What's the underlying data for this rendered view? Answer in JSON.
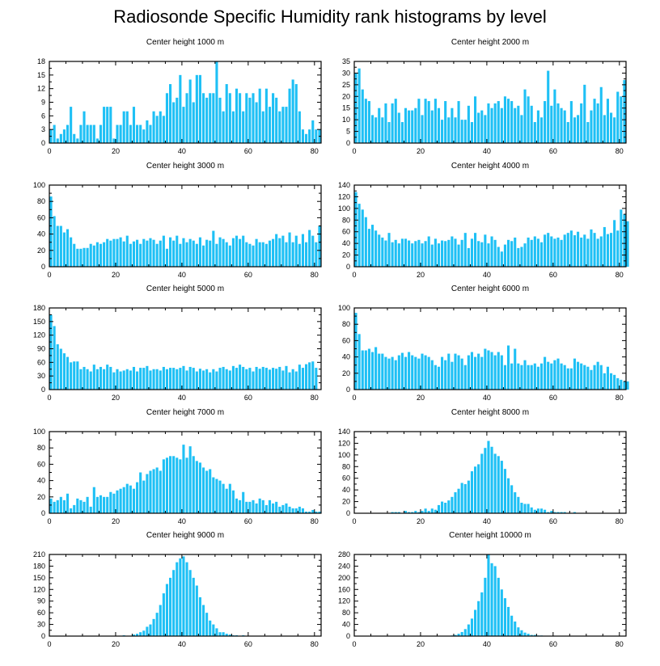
{
  "title": "Radiosonde Specific Humidity rank histograms by level",
  "colors": {
    "bar": "#1ec0f5",
    "axis": "#000000",
    "background": "#ffffff"
  },
  "chart_data": [
    {
      "type": "bar",
      "title": "Center height 1000 m",
      "xlim": [
        0,
        82
      ],
      "ylim": [
        0,
        18
      ],
      "xticks": [
        0,
        20,
        40,
        60,
        80
      ],
      "yticks": [
        0,
        3,
        6,
        9,
        12,
        15,
        18
      ],
      "values": [
        3,
        4,
        1,
        2,
        3,
        4,
        8,
        2,
        1,
        4,
        7,
        4,
        4,
        4,
        1,
        4,
        8,
        8,
        8,
        1,
        4,
        4,
        7,
        7,
        4,
        8,
        4,
        4,
        3,
        5,
        4,
        7,
        6,
        7,
        6,
        11,
        13,
        9,
        10,
        15,
        8,
        11,
        14,
        9,
        15,
        15,
        11,
        10,
        11,
        11,
        18,
        10,
        7,
        13,
        11,
        7,
        12,
        11,
        7,
        11,
        10,
        11,
        9,
        12,
        7,
        12,
        8,
        11,
        10,
        7,
        8,
        8,
        12,
        14,
        13,
        7,
        3,
        2,
        3,
        5,
        3,
        3
      ]
    },
    {
      "type": "bar",
      "title": "Center height 2000 m",
      "xlim": [
        0,
        82
      ],
      "ylim": [
        0,
        35
      ],
      "xticks": [
        0,
        20,
        40,
        60,
        80
      ],
      "yticks": [
        0,
        5,
        10,
        15,
        20,
        25,
        30,
        35
      ],
      "values": [
        30,
        32,
        23,
        19,
        18,
        12,
        11,
        15,
        11,
        17,
        9,
        17,
        19,
        13,
        9,
        15,
        14,
        14,
        15,
        19,
        12,
        19,
        18,
        14,
        19,
        15,
        10,
        18,
        11,
        15,
        11,
        18,
        10,
        10,
        16,
        9,
        20,
        13,
        14,
        12,
        17,
        15,
        17,
        18,
        15,
        20,
        19,
        18,
        15,
        16,
        12,
        23,
        20,
        16,
        9,
        14,
        11,
        18,
        31,
        16,
        23,
        17,
        15,
        14,
        9,
        18,
        11,
        12,
        17,
        25,
        9,
        14,
        19,
        17,
        24,
        12,
        19,
        13,
        11,
        22,
        20,
        27
      ]
    },
    {
      "type": "bar",
      "title": "Center height 3000 m",
      "xlim": [
        0,
        82
      ],
      "ylim": [
        0,
        100
      ],
      "xticks": [
        0,
        20,
        40,
        60,
        80
      ],
      "yticks": [
        0,
        20,
        40,
        60,
        80,
        100
      ],
      "values": [
        86,
        62,
        50,
        50,
        42,
        46,
        36,
        28,
        22,
        22,
        23,
        23,
        28,
        26,
        30,
        28,
        30,
        34,
        32,
        34,
        34,
        36,
        31,
        38,
        28,
        31,
        33,
        28,
        34,
        32,
        35,
        33,
        28,
        32,
        38,
        22,
        36,
        32,
        38,
        28,
        35,
        30,
        34,
        32,
        28,
        36,
        26,
        33,
        32,
        44,
        28,
        36,
        34,
        30,
        26,
        35,
        38,
        34,
        38,
        30,
        28,
        26,
        34,
        30,
        30,
        28,
        32,
        34,
        40,
        35,
        38,
        30,
        42,
        30,
        38,
        28,
        40,
        30,
        45,
        38,
        30,
        50
      ]
    },
    {
      "type": "bar",
      "title": "Center height 4000 m",
      "xlim": [
        0,
        82
      ],
      "ylim": [
        0,
        140
      ],
      "xticks": [
        0,
        20,
        40,
        60,
        80
      ],
      "yticks": [
        0,
        20,
        40,
        60,
        80,
        100,
        120,
        140
      ],
      "values": [
        128,
        108,
        98,
        85,
        65,
        72,
        62,
        55,
        50,
        45,
        58,
        42,
        46,
        40,
        48,
        48,
        45,
        40,
        44,
        46,
        40,
        44,
        52,
        38,
        48,
        40,
        45,
        44,
        46,
        52,
        48,
        38,
        46,
        58,
        32,
        48,
        58,
        44,
        42,
        55,
        40,
        52,
        46,
        34,
        26,
        38,
        46,
        44,
        50,
        32,
        34,
        40,
        50,
        46,
        52,
        48,
        42,
        55,
        58,
        52,
        48,
        50,
        46,
        55,
        58,
        62,
        54,
        60,
        50,
        55,
        48,
        64,
        58,
        48,
        52,
        68,
        56,
        58,
        80,
        62,
        98,
        90,
        78
      ]
    },
    {
      "type": "bar",
      "title": "Center height 5000 m",
      "xlim": [
        0,
        82
      ],
      "ylim": [
        0,
        180
      ],
      "xticks": [
        0,
        20,
        40,
        60,
        80
      ],
      "yticks": [
        0,
        30,
        60,
        90,
        120,
        150,
        180
      ],
      "values": [
        165,
        140,
        100,
        90,
        80,
        72,
        60,
        62,
        62,
        45,
        50,
        45,
        40,
        55,
        45,
        50,
        45,
        55,
        50,
        38,
        45,
        40,
        42,
        45,
        42,
        50,
        40,
        48,
        48,
        52,
        42,
        45,
        45,
        42,
        50,
        45,
        48,
        48,
        45,
        48,
        52,
        42,
        50,
        48,
        40,
        46,
        42,
        45,
        38,
        45,
        40,
        48,
        50,
        45,
        42,
        52,
        48,
        55,
        50,
        45,
        48,
        40,
        50,
        46,
        50,
        48,
        44,
        48,
        46,
        50,
        42,
        52,
        38,
        45,
        40,
        55,
        48,
        56,
        60,
        62,
        48
      ]
    },
    {
      "type": "bar",
      "title": "Center height 6000 m",
      "xlim": [
        0,
        82
      ],
      "ylim": [
        0,
        100
      ],
      "xticks": [
        0,
        20,
        40,
        60,
        80
      ],
      "yticks": [
        0,
        20,
        40,
        60,
        80,
        100
      ],
      "values": [
        94,
        68,
        48,
        48,
        50,
        46,
        52,
        44,
        44,
        40,
        38,
        40,
        36,
        42,
        45,
        40,
        46,
        42,
        40,
        38,
        44,
        42,
        40,
        36,
        30,
        28,
        40,
        36,
        44,
        34,
        44,
        42,
        38,
        30,
        42,
        46,
        40,
        44,
        40,
        50,
        48,
        46,
        42,
        46,
        42,
        30,
        54,
        32,
        50,
        32,
        30,
        36,
        30,
        30,
        32,
        28,
        32,
        40,
        34,
        32,
        36,
        38,
        32,
        30,
        26,
        26,
        38,
        34,
        32,
        30,
        28,
        24,
        30,
        34,
        30,
        20,
        28,
        20,
        18,
        14,
        12,
        10,
        10
      ]
    },
    {
      "type": "bar",
      "title": "Center height 7000 m",
      "xlim": [
        0,
        82
      ],
      "ylim": [
        0,
        100
      ],
      "xticks": [
        0,
        20,
        40,
        60,
        80
      ],
      "yticks": [
        0,
        20,
        40,
        60,
        80,
        100
      ],
      "values": [
        18,
        14,
        16,
        20,
        16,
        24,
        6,
        10,
        18,
        16,
        14,
        20,
        8,
        32,
        20,
        22,
        20,
        20,
        26,
        24,
        28,
        30,
        32,
        36,
        34,
        30,
        38,
        50,
        40,
        48,
        52,
        54,
        56,
        52,
        66,
        68,
        70,
        70,
        68,
        66,
        84,
        68,
        82,
        70,
        64,
        62,
        56,
        52,
        54,
        44,
        42,
        40,
        36,
        30,
        36,
        28,
        18,
        16,
        26,
        14,
        14,
        16,
        12,
        18,
        16,
        10,
        16,
        12,
        14,
        8,
        10,
        12,
        8,
        6,
        6,
        8,
        6,
        2,
        2,
        4,
        2,
        2
      ]
    },
    {
      "type": "bar",
      "title": "Center height 8000 m",
      "xlim": [
        0,
        82
      ],
      "ylim": [
        0,
        140
      ],
      "xticks": [
        0,
        20,
        40,
        60,
        80
      ],
      "yticks": [
        0,
        20,
        40,
        60,
        80,
        100,
        120,
        140
      ],
      "values": [
        0,
        0,
        0,
        0,
        0,
        0,
        0,
        0,
        0,
        0,
        0,
        2,
        2,
        2,
        0,
        4,
        2,
        2,
        4,
        2,
        4,
        8,
        4,
        8,
        6,
        14,
        20,
        18,
        22,
        28,
        36,
        42,
        52,
        50,
        56,
        72,
        80,
        84,
        102,
        112,
        124,
        114,
        102,
        98,
        90,
        76,
        60,
        48,
        36,
        28,
        18,
        16,
        16,
        10,
        6,
        8,
        8,
        6,
        2,
        4,
        2,
        2,
        2,
        2,
        0,
        0,
        2,
        0,
        0,
        0,
        0,
        0,
        0,
        0,
        0,
        0,
        0,
        0,
        0,
        0,
        0,
        0
      ]
    },
    {
      "type": "bar",
      "title": "Center height 9000 m",
      "xlim": [
        0,
        82
      ],
      "ylim": [
        0,
        210
      ],
      "xticks": [
        0,
        20,
        40,
        60,
        80
      ],
      "yticks": [
        0,
        30,
        60,
        90,
        120,
        150,
        180,
        210
      ],
      "values": [
        0,
        0,
        0,
        0,
        0,
        0,
        0,
        0,
        0,
        0,
        0,
        0,
        0,
        0,
        0,
        0,
        0,
        0,
        0,
        0,
        0,
        0,
        2,
        0,
        0,
        4,
        6,
        10,
        14,
        24,
        30,
        44,
        60,
        80,
        110,
        134,
        150,
        170,
        190,
        200,
        205,
        190,
        170,
        150,
        130,
        100,
        80,
        60,
        40,
        30,
        20,
        10,
        10,
        6,
        4,
        2,
        2,
        0,
        2,
        0,
        0,
        0,
        0,
        0,
        0,
        0,
        0,
        0,
        0,
        0,
        0,
        0,
        0,
        0,
        0,
        0,
        0,
        0,
        0,
        0,
        0,
        0
      ]
    },
    {
      "type": "bar",
      "title": "Center height 10000 m",
      "xlim": [
        0,
        82
      ],
      "ylim": [
        0,
        280
      ],
      "xticks": [
        0,
        20,
        40,
        60,
        80
      ],
      "yticks": [
        0,
        40,
        80,
        120,
        160,
        200,
        240,
        280
      ],
      "values": [
        0,
        0,
        0,
        0,
        0,
        0,
        0,
        0,
        0,
        0,
        0,
        0,
        0,
        0,
        0,
        0,
        0,
        0,
        0,
        0,
        0,
        0,
        0,
        0,
        0,
        0,
        0,
        0,
        0,
        2,
        4,
        8,
        14,
        24,
        40,
        60,
        90,
        120,
        150,
        200,
        280,
        250,
        240,
        200,
        160,
        130,
        100,
        70,
        50,
        30,
        20,
        12,
        8,
        4,
        4,
        2,
        2,
        0,
        0,
        0,
        0,
        0,
        0,
        0,
        0,
        0,
        0,
        0,
        0,
        0,
        0,
        0,
        0,
        0,
        0,
        0,
        0,
        0,
        0,
        0,
        0,
        0
      ]
    }
  ]
}
